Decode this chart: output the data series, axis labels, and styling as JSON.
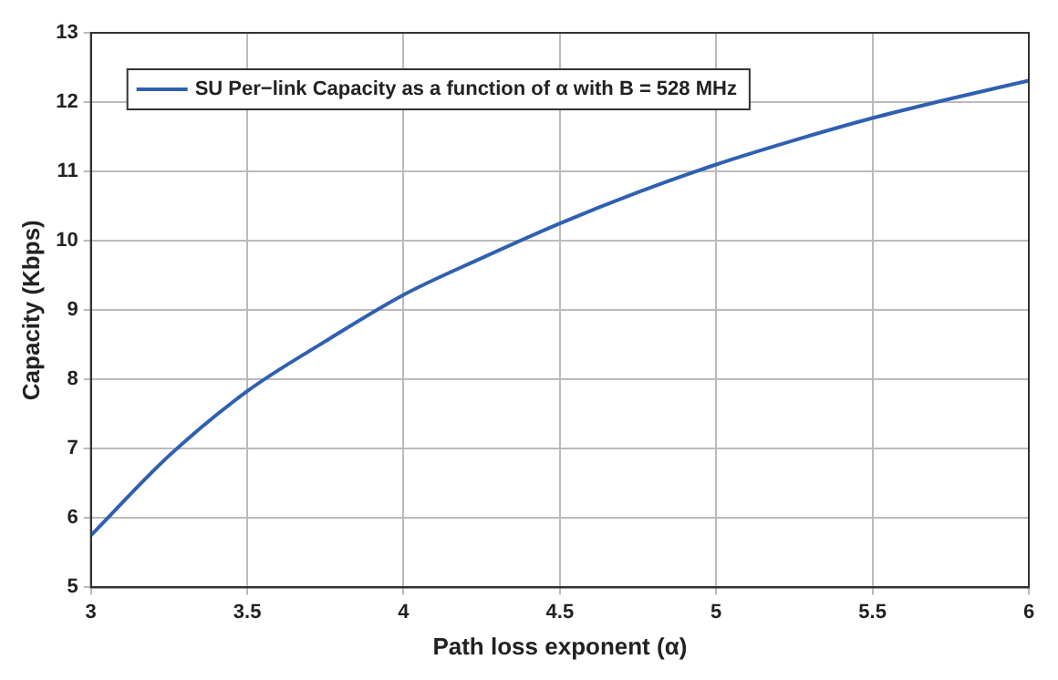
{
  "chart_data": {
    "type": "line",
    "xlabel": "Path loss exponent (α)",
    "ylabel": "Capacity (Kbps)",
    "x": [
      3,
      3.25,
      3.5,
      3.75,
      4,
      4.25,
      4.5,
      4.75,
      5,
      5.25,
      5.5,
      5.75,
      6
    ],
    "series": [
      {
        "name": "SU Per−link Capacity as a function of α with B = 528 MHz",
        "color": "#3060b0",
        "values": [
          5.75,
          6.9,
          7.83,
          8.55,
          9.22,
          9.75,
          10.25,
          10.7,
          11.1,
          11.45,
          11.77,
          12.05,
          12.31
        ]
      }
    ],
    "xlim": [
      3,
      6
    ],
    "xticks": [
      3,
      3.5,
      4,
      4.5,
      5,
      5.5,
      6
    ],
    "ylim": [
      5,
      13
    ],
    "yticks": [
      5,
      6,
      7,
      8,
      9,
      10,
      11,
      12,
      13
    ],
    "grid": true,
    "legend": "top left",
    "marker": "none",
    "line_style": "solid"
  }
}
